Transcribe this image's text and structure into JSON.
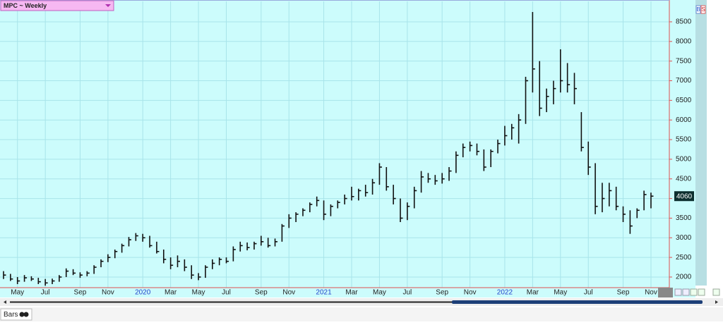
{
  "chart_data": {
    "type": "hlc",
    "title": "MPC ~ Weekly",
    "categories": [
      null,
      null,
      "May",
      null,
      null,
      null,
      "Jul",
      null,
      null,
      null,
      null,
      "Sep",
      null,
      null,
      null,
      "Nov",
      null,
      null,
      null,
      null,
      "2020",
      null,
      null,
      null,
      "Mar",
      null,
      null,
      null,
      "May",
      null,
      null,
      null,
      "Jul",
      null,
      null,
      null,
      null,
      "Sep",
      null,
      null,
      null,
      "Nov",
      null,
      null,
      null,
      null,
      "2021",
      null,
      null,
      null,
      "Mar",
      null,
      null,
      null,
      "May",
      null,
      null,
      null,
      "Jul",
      null,
      null,
      null,
      null,
      "Sep",
      null,
      null,
      null,
      "Nov",
      null,
      null,
      null,
      null,
      "2022",
      null,
      null,
      null,
      "Mar",
      null,
      null,
      null,
      "May",
      null,
      null,
      null,
      "Jul",
      null,
      null,
      null,
      null,
      "Sep",
      null,
      null,
      null,
      "Nov"
    ],
    "high": [
      2150,
      2080,
      2000,
      2050,
      2020,
      1980,
      1950,
      1960,
      2050,
      2220,
      2200,
      2120,
      2150,
      2300,
      2450,
      2580,
      2700,
      2850,
      3020,
      3120,
      3100,
      3050,
      2900,
      2700,
      2500,
      2550,
      2450,
      2300,
      2100,
      2300,
      2450,
      2500,
      2500,
      2780,
      2900,
      2880,
      2900,
      3050,
      3000,
      2980,
      3350,
      3600,
      3650,
      3750,
      3900,
      4050,
      3950,
      3850,
      3950,
      4100,
      4300,
      4250,
      4350,
      4500,
      4900,
      4800,
      4350,
      4000,
      3900,
      4300,
      4700,
      4650,
      4600,
      4650,
      4800,
      5200,
      5400,
      5450,
      5400,
      5250,
      5250,
      5500,
      5850,
      5900,
      6150,
      7100,
      8750,
      7500,
      6800,
      7000,
      7800,
      7450,
      7200,
      6200,
      5450,
      4900,
      4400,
      4400,
      4300,
      3800,
      3700,
      3750,
      4200,
      4150
    ],
    "low": [
      1950,
      1900,
      1820,
      1880,
      1900,
      1820,
      1780,
      1820,
      1880,
      2000,
      2050,
      1980,
      2020,
      2080,
      2250,
      2380,
      2480,
      2620,
      2780,
      2920,
      2900,
      2750,
      2600,
      2350,
      2200,
      2250,
      2150,
      1950,
      1920,
      1980,
      2200,
      2300,
      2350,
      2400,
      2650,
      2680,
      2700,
      2800,
      2750,
      2780,
      2900,
      3250,
      3400,
      3550,
      3650,
      3800,
      3450,
      3550,
      3750,
      3850,
      3950,
      3950,
      4050,
      4100,
      4350,
      4200,
      3850,
      3400,
      3450,
      3750,
      4150,
      4400,
      4350,
      4380,
      4450,
      4650,
      5050,
      5200,
      5100,
      4700,
      4800,
      5150,
      5350,
      5500,
      5400,
      5900,
      6700,
      6100,
      6200,
      6400,
      6700,
      6700,
      6400,
      5200,
      4600,
      3600,
      3650,
      3800,
      3700,
      3400,
      3100,
      3500,
      3700,
      3750
    ],
    "close": [
      2050,
      1950,
      1900,
      1980,
      1950,
      1880,
      1850,
      1900,
      2000,
      2150,
      2100,
      2050,
      2100,
      2250,
      2400,
      2500,
      2650,
      2800,
      2950,
      3050,
      3000,
      2800,
      2650,
      2450,
      2300,
      2400,
      2250,
      2050,
      2000,
      2250,
      2350,
      2450,
      2400,
      2700,
      2800,
      2750,
      2850,
      2900,
      2800,
      2900,
      3300,
      3500,
      3600,
      3700,
      3850,
      3950,
      3600,
      3800,
      3900,
      4000,
      4050,
      4200,
      4150,
      4400,
      4800,
      4300,
      4000,
      3500,
      3800,
      4200,
      4550,
      4500,
      4450,
      4500,
      4700,
      5100,
      5300,
      5350,
      5200,
      4800,
      5200,
      5400,
      5600,
      5800,
      6000,
      7000,
      7300,
      6300,
      6600,
      6800,
      7000,
      6900,
      6800,
      5300,
      4800,
      3800,
      4000,
      4200,
      3800,
      3600,
      3300,
      3700,
      4100,
      4060
    ],
    "color": "#111111",
    "last_price": 4060,
    "ylim": [
      1730,
      9020
    ],
    "yticks": [
      2000,
      2500,
      3000,
      3500,
      4000,
      4500,
      5000,
      5500,
      6000,
      6500,
      7000,
      7500,
      8000,
      8500
    ],
    "grid": true
  },
  "ui": {
    "buy": "B",
    "sell": "S",
    "footer": "Bars"
  }
}
